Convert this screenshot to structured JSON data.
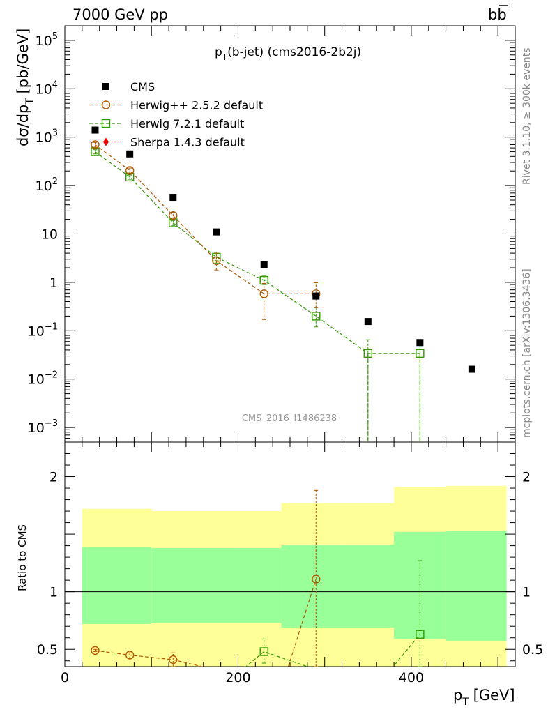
{
  "header": {
    "beam": "7000 GeV pp",
    "process_main": "b",
    "process_bar": "b"
  },
  "main_title": {
    "p": "p",
    "sub": "T",
    "rest": "(b-jet) (cms2016-2b2j)"
  },
  "ylabel_main": {
    "prefix": "dσ/dp",
    "sub": "T",
    "suffix": " [pb/GeV]"
  },
  "ylabel_ratio": "Ratio to CMS",
  "xlabel": {
    "p": "p",
    "sub": "T",
    "suffix": " [GeV]"
  },
  "watermark": "CMS_2016_I1486238",
  "side_text_1": "Rivet 3.1.10, ≥ 300k events",
  "side_text_2": "mcplots.cern.ch [arXiv:1306.3436]",
  "legend": [
    {
      "label": "CMS",
      "marker": "filled-square",
      "color": "#000000"
    },
    {
      "label": "Herwig++ 2.5.2 default",
      "marker": "open-circle",
      "color": "#b35900"
    },
    {
      "label": "Herwig 7.2.1 default",
      "marker": "open-square",
      "color": "#339900"
    },
    {
      "label": "Sherpa 1.4.3 default",
      "marker": "filled-diamond",
      "color": "#ee0000"
    }
  ],
  "chart_data": {
    "type": "scatter",
    "x_range": [
      0,
      520
    ],
    "xticks": [
      "0",
      "200",
      "400"
    ],
    "main": {
      "yscale": "log",
      "ylim": [
        0.0005,
        200000
      ],
      "yticks": [
        {
          "base": "10",
          "exp": "−3"
        },
        {
          "base": "10",
          "exp": "−2"
        },
        {
          "base": "10",
          "exp": "−1"
        },
        {
          "base": "1",
          "exp": ""
        },
        {
          "base": "10",
          "exp": ""
        },
        {
          "base": "10",
          "exp": "2"
        },
        {
          "base": "10",
          "exp": "3"
        },
        {
          "base": "10",
          "exp": "4"
        },
        {
          "base": "10",
          "exp": "5"
        }
      ]
    },
    "ratio": {
      "ylim": [
        0.35,
        2.3
      ],
      "yticks": [
        "0.5",
        "1",
        "2"
      ],
      "reference_line": 1
    },
    "series": [
      {
        "name": "CMS",
        "x": [
          35,
          75,
          125,
          175,
          230,
          290,
          350,
          410,
          470
        ],
        "y": [
          1400,
          450,
          57,
          11,
          2.3,
          0.52,
          0.155,
          0.057,
          0.016
        ]
      },
      {
        "name": "Herwig++ 2.5.2 default",
        "x": [
          35,
          75,
          125,
          175,
          230,
          290
        ],
        "y": [
          700,
          205,
          24,
          2.8,
          0.58,
          0.58
        ],
        "ylow": [
          620,
          180,
          20,
          1.8,
          0.17,
          0.3
        ],
        "yhigh": [
          780,
          230,
          28,
          4.0,
          0.95,
          0.98
        ]
      },
      {
        "name": "Herwig 7.2.1 default",
        "x": [
          35,
          75,
          125,
          175,
          230,
          290,
          350,
          410
        ],
        "y": [
          500,
          150,
          17,
          3.3,
          1.1,
          0.2,
          0.034,
          0.034
        ],
        "ylow": [
          450,
          135,
          15,
          2.5,
          0.9,
          0.12,
          0.0004,
          0.0004
        ],
        "yhigh": [
          550,
          165,
          19,
          4.2,
          1.35,
          0.3,
          0.065,
          0.065
        ],
        "ends_below_axis": true
      },
      {
        "name": "Sherpa 1.4.3 default",
        "x": [],
        "y": []
      }
    ],
    "ratio_bands": {
      "edges": [
        20,
        100,
        200,
        250,
        320,
        380,
        440,
        510
      ],
      "inner_low": [
        0.72,
        0.73,
        0.73,
        0.69,
        0.69,
        0.59,
        0.57,
        0.56
      ],
      "inner_high": [
        1.39,
        1.38,
        1.38,
        1.41,
        1.41,
        1.52,
        1.53,
        1.54
      ],
      "outer_low": [
        0.35,
        0.35,
        0.35,
        0.35,
        0.35,
        0.35,
        0.35,
        0.35
      ],
      "outer_high": [
        1.72,
        1.7,
        1.7,
        1.77,
        1.77,
        1.91,
        1.92,
        1.94
      ],
      "inner_color": "#99ff99",
      "outer_color": "#ffff99"
    },
    "ratio_series": [
      {
        "name": "Herwig++ 2.5.2 default",
        "x": [
          35,
          75,
          125,
          290
        ],
        "y": [
          0.49,
          0.45,
          0.41,
          1.11
        ],
        "ylow": [
          0.48,
          0.42,
          0.35,
          0.35
        ],
        "yhigh": [
          0.5,
          0.47,
          0.47,
          1.88
        ],
        "line_x": [
          35,
          75,
          125,
          175,
          229,
          258,
          290
        ],
        "line_y": [
          0.49,
          0.45,
          0.41,
          0.32,
          0.12,
          0.35,
          1.11
        ]
      },
      {
        "name": "Herwig 7.2.1 default",
        "x": [
          230,
          410
        ],
        "y": [
          0.48,
          0.63
        ],
        "ylow": [
          0.38,
          0.35
        ],
        "yhigh": [
          0.59,
          1.27
        ],
        "line_x": [
          175,
          209,
          230,
          280,
          290,
          350,
          379,
          410
        ],
        "line_y": [
          0.3,
          0.35,
          0.48,
          0.35,
          0.33,
          0.2,
          0.35,
          0.63
        ]
      }
    ]
  }
}
